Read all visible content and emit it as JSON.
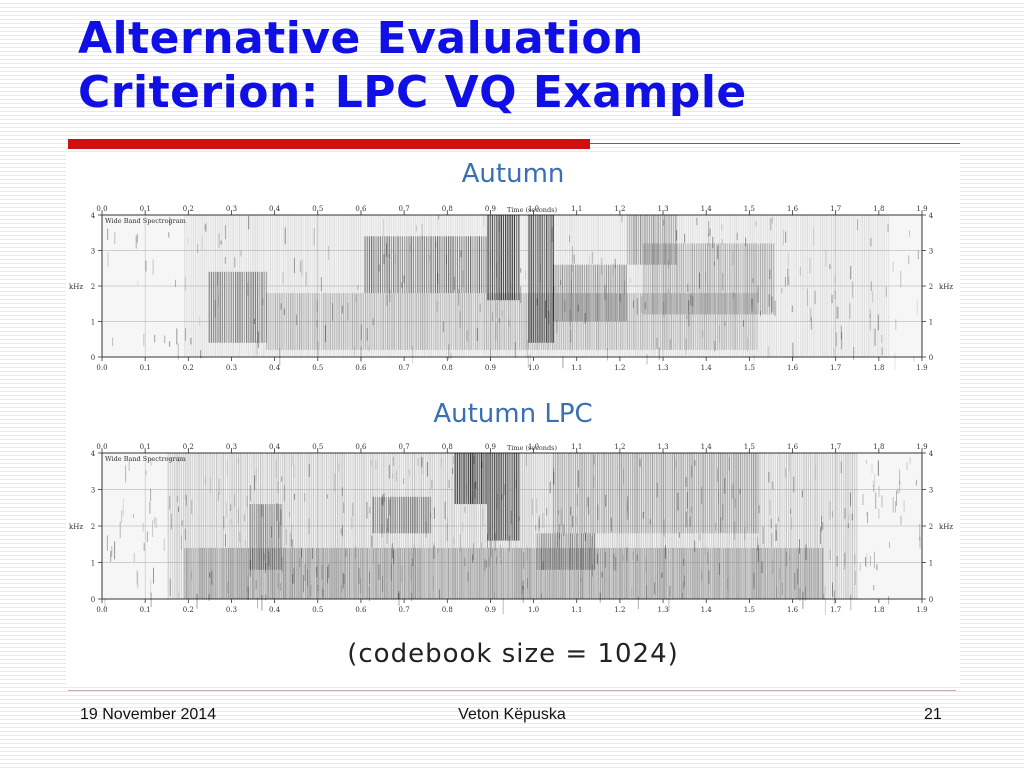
{
  "slide": {
    "title_line1": "Alternative Evaluation",
    "title_line2": "Criterion: LPC VQ Example",
    "colors": {
      "title": "#1010e6",
      "accent_rule": "#d01010",
      "figure_heading": "#3a6fb4"
    }
  },
  "figure": {
    "top_heading": "Autumn",
    "bottom_heading": "Autumn LPC",
    "caption": "(codebook size = 1024)",
    "spectrogram_label": "Wide Band Spectrogram",
    "time_axis_label": "Time (seconds)",
    "freq_axis_label": "kHz",
    "time_ticks": [
      "0.0",
      "0.1",
      "0.2",
      "0.3",
      "0.4",
      "0.5",
      "0.6",
      "0.7",
      "0.8",
      "0.9",
      "1.0",
      "1.1",
      "1.2",
      "1.3",
      "1.4",
      "1.5",
      "1.6",
      "1.7",
      "1.8",
      "1.9"
    ],
    "freq_ticks": [
      "0",
      "1",
      "2",
      "3",
      "4"
    ]
  },
  "footer": {
    "date": "19 November 2014",
    "author": "Veton Këpuska",
    "page_number": "21"
  }
}
